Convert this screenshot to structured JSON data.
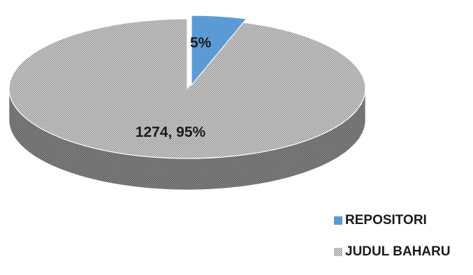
{
  "chart_data": {
    "type": "pie",
    "style": "3d-exploded",
    "title": "",
    "series": [
      {
        "name": "",
        "slices": [
          {
            "label": "REPOSITORI",
            "percent": 5,
            "data_label": "5%",
            "color": "#5b9bd5",
            "pattern": "solid",
            "exploded": true
          },
          {
            "label": "JUDUL BAHARU",
            "value": 1274,
            "percent": 95,
            "data_label": "1274, 95%",
            "color": "#9a9a9a",
            "pattern": "diagonal-hatch",
            "exploded": false
          }
        ]
      }
    ],
    "legend_position": "bottom-right"
  }
}
